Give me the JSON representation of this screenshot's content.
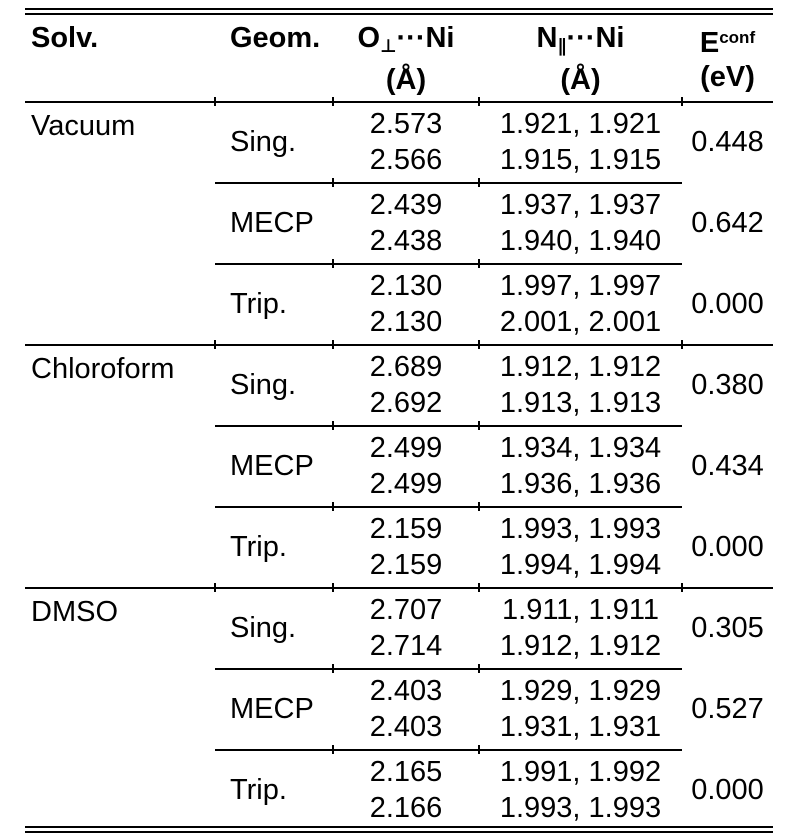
{
  "table": {
    "header": {
      "solv": "Solv.",
      "geom": "Geom.",
      "o": {
        "el": "O",
        "sub": "⊥",
        "rest": "···Ni",
        "unit": "(Å)"
      },
      "n": {
        "el": "N",
        "sub": "∥",
        "rest": "···Ni",
        "unit": "(Å)"
      },
      "e": {
        "el": "E",
        "sup": "conf",
        "unit": "(eV)"
      }
    },
    "colors": {
      "text": "#000000",
      "background": "#ffffff",
      "rule": "#000000"
    },
    "sections": [
      {
        "solvent": "Vacuum",
        "groups": [
          {
            "geom": "Sing.",
            "o1": "2.573",
            "o2": "2.566",
            "n1": "1.921, 1.921",
            "n2": "1.915, 1.915",
            "e": "0.448"
          },
          {
            "geom": "MECP",
            "o1": "2.439",
            "o2": "2.438",
            "n1": "1.937, 1.937",
            "n2": "1.940, 1.940",
            "e": "0.642"
          },
          {
            "geom": "Trip.",
            "o1": "2.130",
            "o2": "2.130",
            "n1": "1.997, 1.997",
            "n2": "2.001, 2.001",
            "e": "0.000"
          }
        ]
      },
      {
        "solvent": "Chloroform",
        "groups": [
          {
            "geom": "Sing.",
            "o1": "2.689",
            "o2": "2.692",
            "n1": "1.912, 1.912",
            "n2": "1.913, 1.913",
            "e": "0.380"
          },
          {
            "geom": "MECP",
            "o1": "2.499",
            "o2": "2.499",
            "n1": "1.934, 1.934",
            "n2": "1.936, 1.936",
            "e": "0.434"
          },
          {
            "geom": "Trip.",
            "o1": "2.159",
            "o2": "2.159",
            "n1": "1.993, 1.993",
            "n2": "1.994, 1.994",
            "e": "0.000"
          }
        ]
      },
      {
        "solvent": "DMSO",
        "groups": [
          {
            "geom": "Sing.",
            "o1": "2.707",
            "o2": "2.714",
            "n1": "1.911, 1.911",
            "n2": "1.912, 1.912",
            "e": "0.305"
          },
          {
            "geom": "MECP",
            "o1": "2.403",
            "o2": "2.403",
            "n1": "1.929, 1.929",
            "n2": "1.931, 1.931",
            "e": "0.527"
          },
          {
            "geom": "Trip.",
            "o1": "2.165",
            "o2": "2.166",
            "n1": "1.991, 1.992",
            "n2": "1.993, 1.993",
            "e": "0.000"
          }
        ]
      }
    ]
  }
}
